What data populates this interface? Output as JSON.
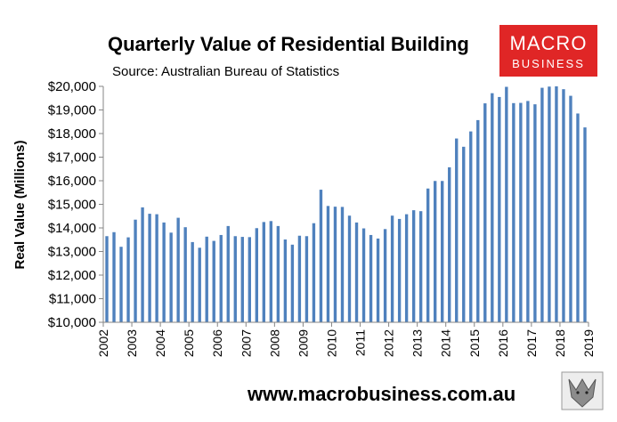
{
  "colors": {
    "bar": "#4f81bd",
    "axis": "#868686",
    "logo_bg": "#e02626",
    "text": "#000000"
  },
  "branding": {
    "logo_line1": "MACRO",
    "logo_line2": "BUSINESS",
    "website": "www.macrobusiness.com.au",
    "logo_icon": "wolf-icon"
  },
  "chart_data": {
    "type": "bar",
    "title": "Quarterly Value of Residential Building",
    "subtitle": "Source: Australian Bureau of Statistics",
    "ylabel": "Real Value (Millions)",
    "xlabel": "",
    "ylim": [
      10000,
      20000
    ],
    "ytick_step": 1000,
    "yticks": [
      "$10,000",
      "$11,000",
      "$12,000",
      "$13,000",
      "$14,000",
      "$15,000",
      "$16,000",
      "$17,000",
      "$18,000",
      "$19,000",
      "$20,000"
    ],
    "xtick_labels": [
      "2002",
      "2003",
      "2004",
      "2005",
      "2006",
      "2007",
      "2008",
      "2009",
      "2010",
      "2011",
      "2012",
      "2013",
      "2014",
      "2015",
      "2016",
      "2017",
      "2018",
      "2019"
    ],
    "grid": false,
    "legend": "none",
    "start_period": "2002 Q1",
    "values": [
      13650,
      13820,
      13200,
      13600,
      14350,
      14870,
      14600,
      14580,
      14230,
      13800,
      14430,
      14030,
      13400,
      13160,
      13630,
      13450,
      13700,
      14080,
      13650,
      13620,
      13610,
      13990,
      14250,
      14290,
      14080,
      13510,
      13290,
      13670,
      13650,
      14200,
      15620,
      14930,
      14900,
      14890,
      14520,
      14230,
      13980,
      13700,
      13550,
      13950,
      14520,
      14380,
      14580,
      14750,
      14710,
      15670,
      15990,
      15990,
      16570,
      17790,
      17440,
      18090,
      18570,
      19280,
      19710,
      19550,
      19980,
      19290,
      19300,
      19380,
      19240,
      19940,
      19990,
      20000,
      19880,
      19600,
      18850,
      18260
    ]
  }
}
